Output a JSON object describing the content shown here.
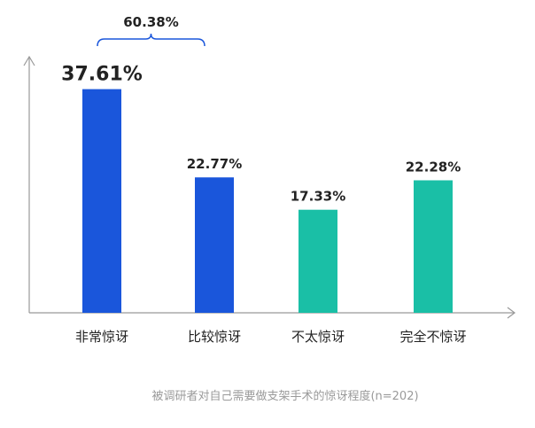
{
  "chart_data": {
    "type": "bar",
    "categories": [
      "非常惊讶",
      "比较惊讶",
      "不太惊讶",
      "完全不惊讶"
    ],
    "values": [
      37.61,
      22.77,
      17.33,
      22.28
    ],
    "value_labels": [
      "37.61%",
      "22.77%",
      "17.33%",
      "22.28%"
    ],
    "colors": [
      "#1a56db",
      "#1a56db",
      "#1abfa6",
      "#1abfa6"
    ],
    "ylim": [
      0,
      45
    ],
    "grid": false,
    "bracket": {
      "label": "60.38%",
      "spans": [
        "非常惊讶",
        "比较惊讶"
      ],
      "value": 60.38
    },
    "caption": "被调研者对自己需要做支架手术的惊讶程度(n=202)"
  },
  "colors": {
    "axis": "#999999",
    "bracket": "#1a56db",
    "text": "#222222",
    "caption": "#9a9a9a"
  }
}
